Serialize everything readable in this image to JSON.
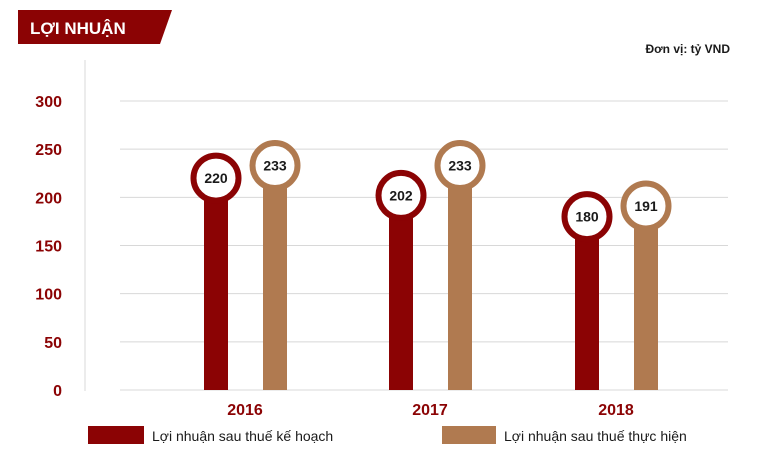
{
  "colors": {
    "plan": "#8b0304",
    "actual": "#b07a50",
    "axis_text": "#8b0304",
    "grid": "#d8d8d8",
    "text": "#1a1a1a"
  },
  "chart_data": {
    "type": "bar",
    "title": "LỢI NHUẬN",
    "unit": "Đơn vị: tỷ VND",
    "categories": [
      "2016",
      "2017",
      "2018"
    ],
    "series": [
      {
        "name": "Lợi nhuận sau thuế kế hoạch",
        "values": [
          220,
          202,
          180
        ],
        "color": "#8b0304"
      },
      {
        "name": "Lợi nhuận sau thuế thực hiện",
        "values": [
          233,
          233,
          191
        ],
        "color": "#b07a50"
      }
    ],
    "ylim": [
      0,
      300
    ],
    "yticks": [
      0,
      50,
      100,
      150,
      200,
      250,
      300
    ],
    "grid": true,
    "legend": "bottom"
  }
}
